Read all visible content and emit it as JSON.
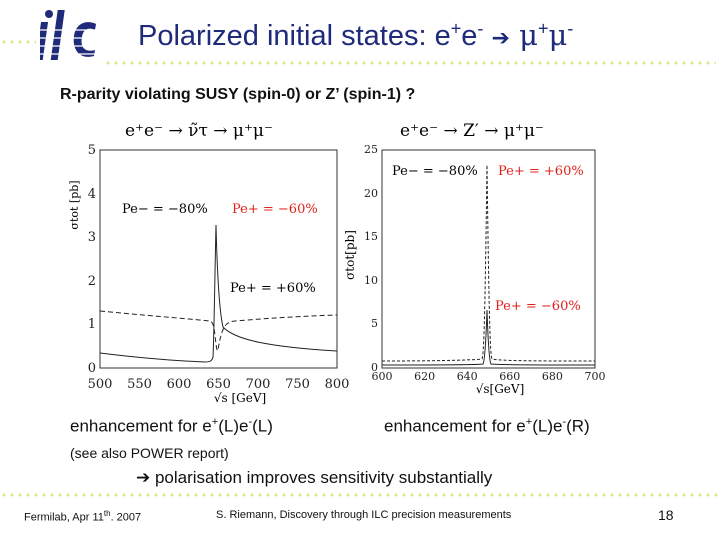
{
  "header": {
    "title_main": "Polarized initial states: e",
    "title_plus": "+",
    "title_e": "e",
    "title_minus": "-",
    "title_arrow": "➔",
    "title_mu": " μ",
    "title_mu_plus": "+",
    "title_mu2": "μ",
    "title_mu_minus": "-",
    "logo_text": "ilc"
  },
  "subtitle": "R-parity violating SUSY (spin-0) or Z’ (spin-1) ?",
  "left_plot": {
    "process": "e⁺e⁻ → ν̃τ → μ⁺μ⁻",
    "ylabel": "σtot [pb]",
    "xlabel": "√s [GeV]",
    "xticks": [
      "500",
      "550",
      "600",
      "650",
      "700",
      "750",
      "800"
    ],
    "yticks": [
      "0",
      "1",
      "2",
      "3",
      "4",
      "5"
    ],
    "label_upper_a": "Pe− = −80%",
    "label_upper_b": "Pe+ = −60%",
    "label_lower": "Pe+ = +60%"
  },
  "right_plot": {
    "process": "e⁺e⁻ → Z′ → μ⁺μ⁻",
    "ylabel": "σtot[pb]",
    "xlabel": "√s[GeV]",
    "xticks": [
      "600",
      "620",
      "640",
      "660",
      "680",
      "700"
    ],
    "yticks": [
      "0",
      "5",
      "10",
      "15",
      "20",
      "25"
    ],
    "label_upper_a": "Pe− = −80%",
    "label_upper_b": "Pe+ = +60%",
    "label_lower": "Pe+ = −60%"
  },
  "captions": {
    "left_main": "enhancement for e",
    "left_sup1": "+",
    "left_mid": "(L)e",
    "left_sup2": "-",
    "left_end": "(L)",
    "right_main": "enhancement for e",
    "right_sup1": "+",
    "right_mid": "(L)e",
    "right_sup2": "-",
    "right_end": "(R)"
  },
  "note": "(see also POWER report)",
  "conclusion": {
    "arrow": "➔",
    "text": " polarisation improves sensitivity  substantially"
  },
  "footer": {
    "left": "Fermilab, Apr 11",
    "left_sup": "th",
    "left_end": ". 2007",
    "center": "S. Riemann, Discovery through ILC precision measurements",
    "page": "18"
  },
  "colors": {
    "title": "#1f2a7a",
    "dots": "#e2e48a",
    "red": "#e0201b",
    "logo": "#1f2a7a"
  }
}
